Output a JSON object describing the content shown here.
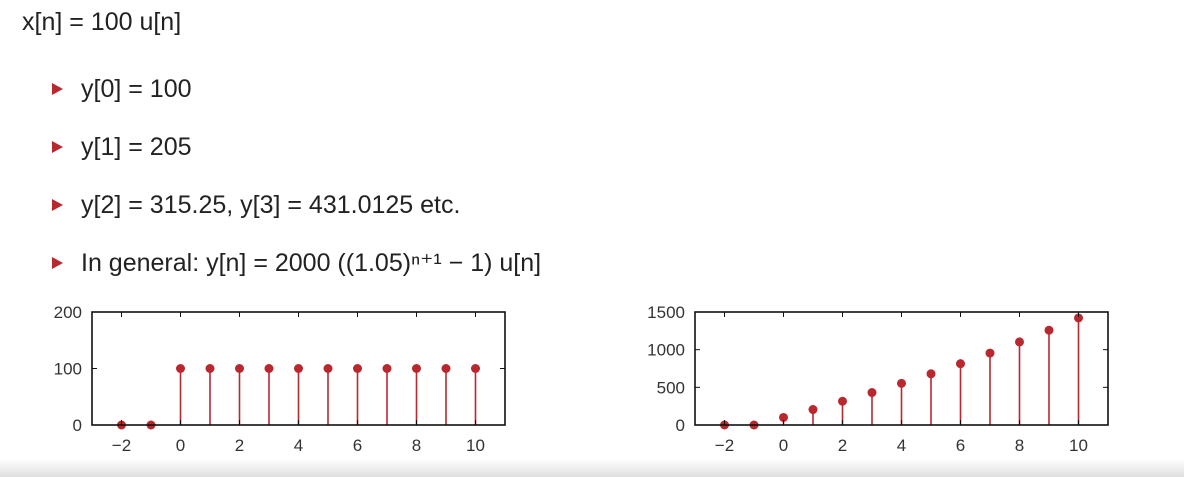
{
  "headline": "x[n] = 100 u[n]",
  "bullets": [
    "y[0] = 100",
    "y[1] = 205",
    "y[2] = 315.25,  y[3] = 431.0125  etc.",
    "In general:  y[n] = 2000 ((1.05)ⁿ⁺¹ − 1) u[n]"
  ],
  "colors": {
    "stem": "#b8282e",
    "bullet": "#b8282e",
    "axis": "#111111"
  },
  "chart_data": [
    {
      "type": "stem",
      "x": [
        -2,
        -1,
        0,
        1,
        2,
        3,
        4,
        5,
        6,
        7,
        8,
        9,
        10
      ],
      "values": [
        0,
        0,
        100,
        100,
        100,
        100,
        100,
        100,
        100,
        100,
        100,
        100,
        100
      ],
      "xlim": [
        -3,
        11
      ],
      "ylim": [
        0,
        200
      ],
      "xticks": [
        -2,
        0,
        2,
        4,
        6,
        8,
        10
      ],
      "xtick_labels": [
        "−2",
        "0",
        "2",
        "4",
        "6",
        "8",
        "10"
      ],
      "yticks": [
        0,
        100,
        200
      ],
      "ytick_labels": [
        "0",
        "100",
        "200"
      ],
      "grid": false
    },
    {
      "type": "stem",
      "x": [
        -2,
        -1,
        0,
        1,
        2,
        3,
        4,
        5,
        6,
        7,
        8,
        9,
        10
      ],
      "values": [
        0,
        0,
        100,
        205,
        315.25,
        431.01,
        552.56,
        680.19,
        814.2,
        954.91,
        1102.66,
        1257.79,
        1420.68
      ],
      "xlim": [
        -3,
        11
      ],
      "ylim": [
        0,
        1500
      ],
      "xticks": [
        -2,
        0,
        2,
        4,
        6,
        8,
        10
      ],
      "xtick_labels": [
        "−2",
        "0",
        "2",
        "4",
        "6",
        "8",
        "10"
      ],
      "yticks": [
        0,
        500,
        1000,
        1500
      ],
      "ytick_labels": [
        "0",
        "500",
        "1000",
        "1500"
      ],
      "grid": false
    }
  ]
}
